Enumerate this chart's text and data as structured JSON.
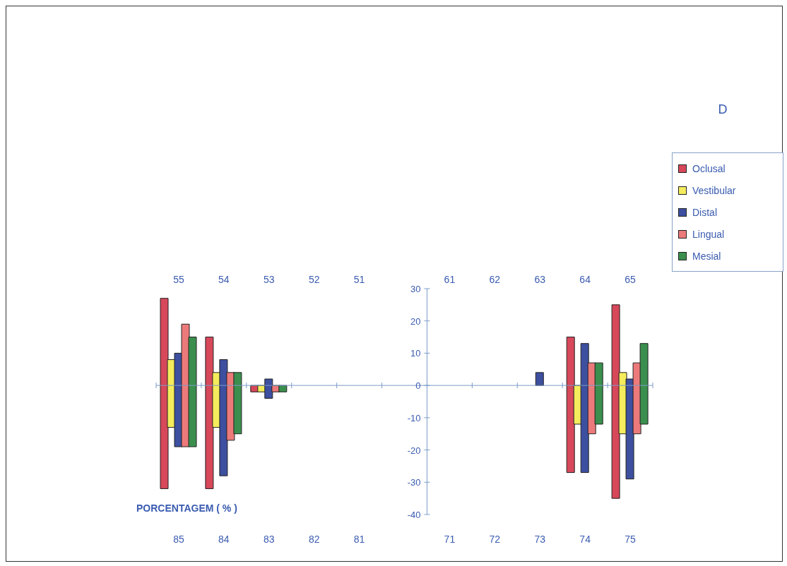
{
  "chart_data": {
    "type": "bar",
    "title": "D",
    "ylabel": "PORCENTAGEM ( % )",
    "legend": "right",
    "ylim": [
      -40,
      30
    ],
    "yticks": [
      -40,
      -30,
      -20,
      -10,
      0,
      10,
      20,
      30
    ],
    "categories": [
      "55",
      "54",
      "53",
      "52",
      "51",
      null,
      "61",
      "62",
      "63",
      "64",
      "65"
    ],
    "series": [
      {
        "name": "Oclusal",
        "color": "#d6485a",
        "base": [
          -32,
          -32,
          -2,
          null,
          null,
          null,
          null,
          null,
          null,
          -27,
          -35
        ],
        "values": [
          59,
          47,
          2,
          null,
          null,
          null,
          null,
          null,
          null,
          42,
          60
        ]
      },
      {
        "name": "Vestibular",
        "color": "#f4ec5c",
        "base": [
          -13,
          -13,
          -2,
          null,
          null,
          null,
          null,
          null,
          null,
          -12,
          -15
        ],
        "values": [
          21,
          17,
          2,
          null,
          null,
          null,
          null,
          null,
          null,
          12,
          19
        ]
      },
      {
        "name": "Distal",
        "color": "#3d4f9f",
        "base": [
          -19,
          -28,
          -4,
          null,
          null,
          null,
          null,
          null,
          0,
          -27,
          -29
        ],
        "values": [
          29,
          36,
          6,
          null,
          null,
          null,
          null,
          null,
          4,
          40,
          31
        ]
      },
      {
        "name": "Lingual",
        "color": "#ec7a7a",
        "base": [
          -19,
          -17,
          -2,
          null,
          null,
          null,
          null,
          null,
          null,
          -15,
          -15
        ],
        "values": [
          38,
          21,
          2,
          null,
          null,
          null,
          null,
          null,
          null,
          22,
          22
        ]
      },
      {
        "name": "Mesial",
        "color": "#3b8f4e",
        "base": [
          -19,
          -15,
          -2,
          null,
          null,
          null,
          null,
          null,
          null,
          -12,
          -12
        ],
        "values": [
          34,
          19,
          2,
          null,
          null,
          null,
          null,
          null,
          null,
          19,
          25
        ]
      }
    ],
    "ref_lines": [
      {
        "axis": "y",
        "value": 0,
        "color": "#7a9cc8"
      }
    ],
    "annotations": [
      "85",
      "84",
      "83",
      "82",
      "81",
      "71",
      "72",
      "73",
      "74",
      "75"
    ]
  }
}
